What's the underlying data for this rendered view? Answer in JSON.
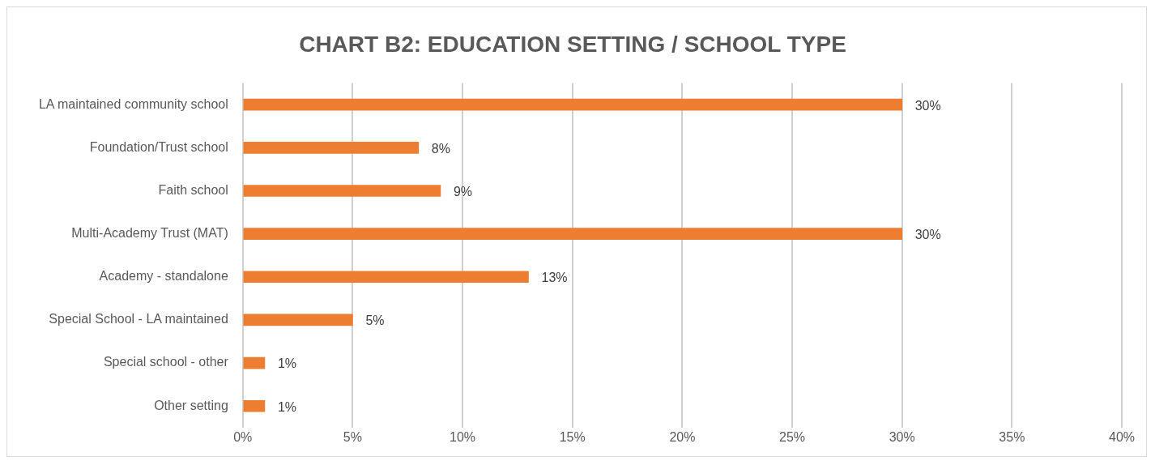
{
  "chart_data": {
    "type": "bar",
    "orientation": "horizontal",
    "title": "CHART B2: EDUCATION SETTING / SCHOOL TYPE",
    "categories": [
      "LA maintained community school",
      "Foundation/Trust school",
      "Faith school",
      "Multi-Academy Trust (MAT)",
      "Academy - standalone",
      "Special School - LA maintained",
      "Special school - other",
      "Other setting"
    ],
    "values": [
      30,
      8,
      9,
      30,
      13,
      5,
      1,
      1
    ],
    "value_labels": [
      "30%",
      "8%",
      "9%",
      "30%",
      "13%",
      "5%",
      "1%",
      "1%"
    ],
    "color": "#ed7d31",
    "xlim": [
      0,
      40
    ],
    "xticks": [
      {
        "value": 0,
        "label": "0%"
      },
      {
        "value": 5,
        "label": "5%"
      },
      {
        "value": 10,
        "label": "10%"
      },
      {
        "value": 15,
        "label": "15%"
      },
      {
        "value": 20,
        "label": "20%"
      },
      {
        "value": 25,
        "label": "25%"
      },
      {
        "value": 30,
        "label": "30%"
      },
      {
        "value": 35,
        "label": "35%"
      },
      {
        "value": 40,
        "label": "40%"
      }
    ],
    "grid": "x",
    "legend": false
  }
}
